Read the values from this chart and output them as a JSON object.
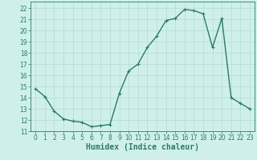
{
  "x": [
    0,
    1,
    2,
    3,
    4,
    5,
    6,
    7,
    8,
    9,
    10,
    11,
    12,
    13,
    14,
    15,
    16,
    17,
    18,
    19,
    20,
    21,
    22,
    23
  ],
  "y": [
    14.8,
    14.1,
    12.8,
    12.1,
    11.9,
    11.8,
    11.4,
    11.5,
    11.6,
    14.4,
    16.4,
    17.0,
    18.5,
    19.5,
    20.9,
    21.1,
    21.9,
    21.8,
    21.5,
    18.5,
    21.1,
    14.0,
    13.5,
    13.0
  ],
  "line_color": "#2d7a6a",
  "marker": "+",
  "marker_size": 3,
  "bg_color": "#cff0ea",
  "grid_color": "#b8ddd8",
  "xlabel": "Humidex (Indice chaleur)",
  "ylim": [
    11,
    22.6
  ],
  "xlim": [
    -0.5,
    23.5
  ],
  "yticks": [
    11,
    12,
    13,
    14,
    15,
    16,
    17,
    18,
    19,
    20,
    21,
    22
  ],
  "xticks": [
    0,
    1,
    2,
    3,
    4,
    5,
    6,
    7,
    8,
    9,
    10,
    11,
    12,
    13,
    14,
    15,
    16,
    17,
    18,
    19,
    20,
    21,
    22,
    23
  ],
  "tick_fontsize": 5.5,
  "xlabel_fontsize": 7,
  "line_width": 1.0,
  "marker_edge_width": 0.8
}
